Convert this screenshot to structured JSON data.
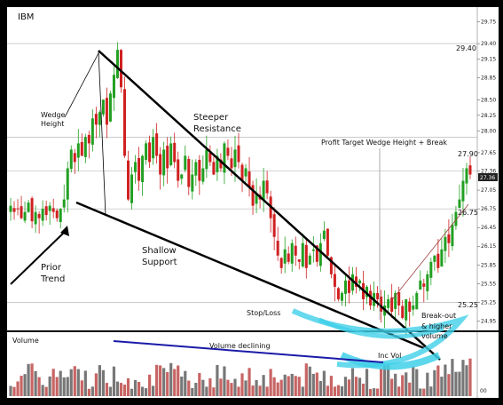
{
  "chart_data": {
    "type": "candlestick",
    "title": "IBM",
    "price_axis": {
      "ticks": [
        "29.75",
        "29.40",
        "29.15",
        "28.85",
        "28.50",
        "28.25",
        "28.00",
        "27.65",
        "27.36",
        "27.05",
        "26.75",
        "26.45",
        "26.15",
        "25.85",
        "25.55",
        "25.25",
        "24.95"
      ],
      "range": [
        24.8,
        29.9
      ]
    },
    "reference_levels": [
      {
        "label": "29.40",
        "value": 29.4
      },
      {
        "label": "27.90",
        "value": 27.9
      },
      {
        "label": "26.75",
        "value": 26.75
      },
      {
        "label": "25.25",
        "value": 25.25
      }
    ],
    "current_price_label": "27.36",
    "annotations": {
      "wedge_height": [
        "Wedge",
        "Height"
      ],
      "steeper_resistance": [
        "Steeper",
        "Resistance"
      ],
      "shallow_support": [
        "Shallow",
        "Support"
      ],
      "prior_trend": [
        "Prior",
        "Trend"
      ],
      "profit_target": "Profit Target Wedge Height + Break",
      "stop_loss": "Stop/Loss",
      "breakout": [
        "Break-out",
        "& higher",
        "volume"
      ],
      "inc_vol": "Inc Vol",
      "volume_declining": "Volume declining"
    },
    "volume_panel": {
      "title": "Volume",
      "tick": "00"
    },
    "colors": {
      "up": "#22a022",
      "down": "#d02020",
      "volume": "#777777",
      "volume_down": "#c86464",
      "highlight": "#40d0e8",
      "trend": "#000000",
      "vol_trend": "#1a1aa8"
    },
    "closes": [
      26.8,
      26.7,
      26.75,
      26.6,
      26.7,
      26.85,
      26.55,
      26.7,
      26.6,
      26.75,
      26.65,
      26.8,
      26.7,
      26.6,
      26.75,
      26.9,
      27.4,
      27.7,
      27.5,
      27.8,
      27.6,
      27.9,
      27.8,
      28.2,
      28.1,
      28.3,
      28.5,
      28.1,
      28.6,
      28.9,
      29.3,
      28.7,
      27.6,
      26.9,
      27.3,
      27.5,
      27.2,
      27.6,
      27.8,
      27.5,
      27.9,
      27.6,
      27.3,
      27.7,
      27.4,
      27.8,
      27.5,
      27.2,
      27.3,
      27.6,
      27.1,
      27.3,
      27.5,
      27.2,
      27.4,
      27.7,
      27.5,
      27.3,
      27.6,
      27.4,
      27.8,
      27.6,
      27.4,
      27.7,
      27.5,
      27.2,
      27.4,
      27.1,
      26.8,
      27.0,
      26.9,
      27.2,
      27.0,
      26.6,
      26.3,
      26.0,
      25.8,
      26.1,
      25.9,
      26.2,
      26.0,
      25.9,
      26.2,
      25.8,
      26.0,
      26.1,
      25.9,
      26.2,
      26.4,
      26.0,
      25.7,
      25.5,
      25.3,
      25.4,
      25.6,
      25.4,
      25.7,
      25.5,
      25.6,
      25.3,
      25.5,
      25.2,
      25.4,
      25.3,
      25.1,
      25.2,
      25.3,
      25.1,
      25.4,
      25.2,
      25.0,
      25.3,
      25.1,
      25.2,
      25.4,
      25.6,
      25.5,
      25.7,
      25.9,
      26.0,
      25.8,
      26.1,
      26.3,
      26.2,
      26.5,
      26.7,
      26.9,
      27.2,
      27.4,
      27.3
    ]
  }
}
